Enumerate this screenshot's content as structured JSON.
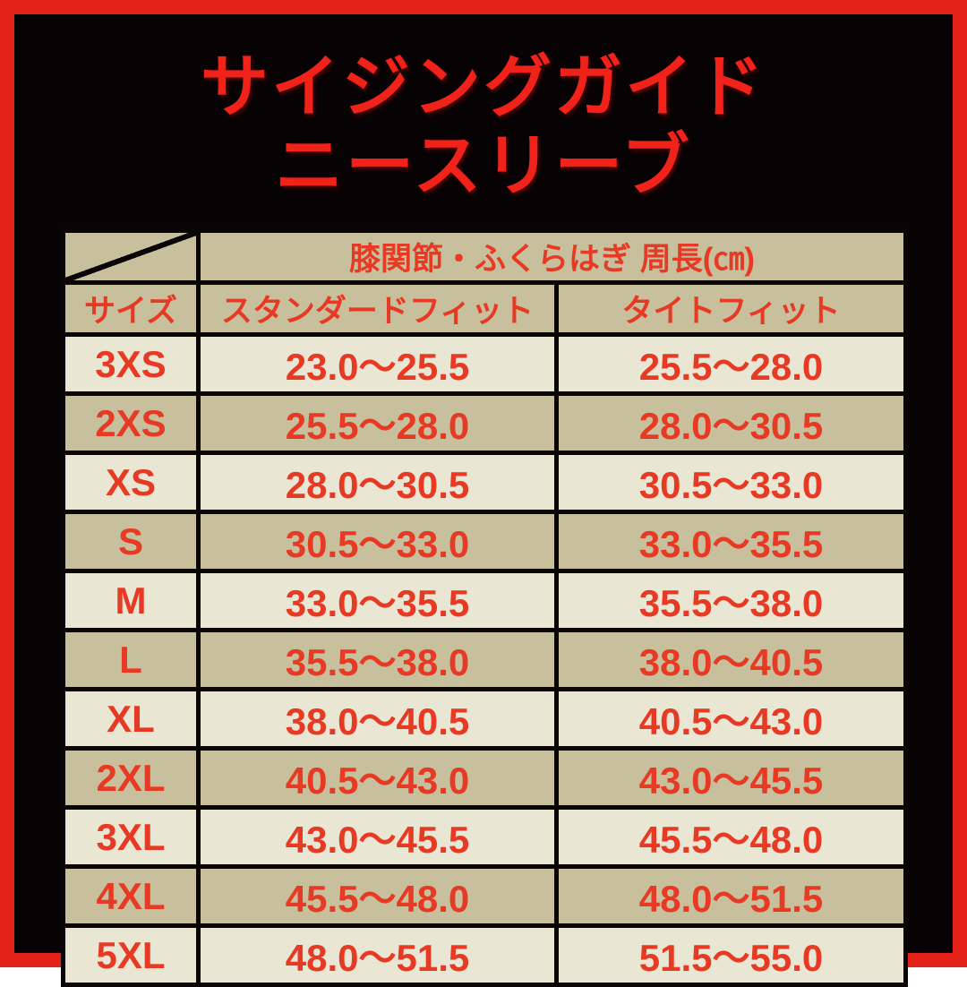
{
  "page": {
    "title_line1": "サイジングガイド",
    "title_line2": "ニースリーブ"
  },
  "colors": {
    "frame_red": "#e32119",
    "title_red": "#f1221a",
    "table_text_red": "#e73a24",
    "cell_light": "#e9e6d4",
    "cell_dark": "#c8c09d",
    "panel_black": "#070304"
  },
  "table": {
    "span_header": "膝関節・ふくらはぎ 周長(㎝)",
    "columns": [
      "サイズ",
      "スタンダードフィット",
      "タイトフィット"
    ],
    "rows": [
      {
        "size": "3XS",
        "standard_fit": "23.0～25.5",
        "tight_fit": "25.5～28.0"
      },
      {
        "size": "2XS",
        "standard_fit": "25.5～28.0",
        "tight_fit": "28.0～30.5"
      },
      {
        "size": "XS",
        "standard_fit": "28.0～30.5",
        "tight_fit": "30.5～33.0"
      },
      {
        "size": "S",
        "standard_fit": "30.5～33.0",
        "tight_fit": "33.0～35.5"
      },
      {
        "size": "M",
        "standard_fit": "33.0～35.5",
        "tight_fit": "35.5～38.0"
      },
      {
        "size": "L",
        "standard_fit": "35.5～38.0",
        "tight_fit": "38.0～40.5"
      },
      {
        "size": "XL",
        "standard_fit": "38.0～40.5",
        "tight_fit": "40.5～43.0"
      },
      {
        "size": "2XL",
        "standard_fit": "40.5～43.0",
        "tight_fit": "43.0～45.5"
      },
      {
        "size": "3XL",
        "standard_fit": "43.0～45.5",
        "tight_fit": "45.5～48.0"
      },
      {
        "size": "4XL",
        "standard_fit": "45.5～48.0",
        "tight_fit": "48.0～51.5"
      },
      {
        "size": "5XL",
        "standard_fit": "48.0～51.5",
        "tight_fit": "51.5～55.0"
      }
    ]
  },
  "chart_data": {
    "type": "table",
    "title": "サイジングガイド ニースリーブ",
    "columns": [
      "サイズ",
      "スタンダードフィット 周長(cm)",
      "タイトフィット 周長(cm)"
    ],
    "rows": [
      [
        "3XS",
        "23.0-25.5",
        "25.5-28.0"
      ],
      [
        "2XS",
        "25.5-28.0",
        "28.0-30.5"
      ],
      [
        "XS",
        "28.0-30.5",
        "30.5-33.0"
      ],
      [
        "S",
        "30.5-33.0",
        "33.0-35.5"
      ],
      [
        "M",
        "33.0-35.5",
        "35.5-38.0"
      ],
      [
        "L",
        "35.5-38.0",
        "38.0-40.5"
      ],
      [
        "XL",
        "38.0-40.5",
        "40.5-43.0"
      ],
      [
        "2XL",
        "40.5-43.0",
        "43.0-45.5"
      ],
      [
        "3XL",
        "43.0-45.5",
        "45.5-48.0"
      ],
      [
        "4XL",
        "45.5-48.0",
        "48.0-51.5"
      ],
      [
        "5XL",
        "48.0-51.5",
        "51.5-55.0"
      ]
    ]
  }
}
